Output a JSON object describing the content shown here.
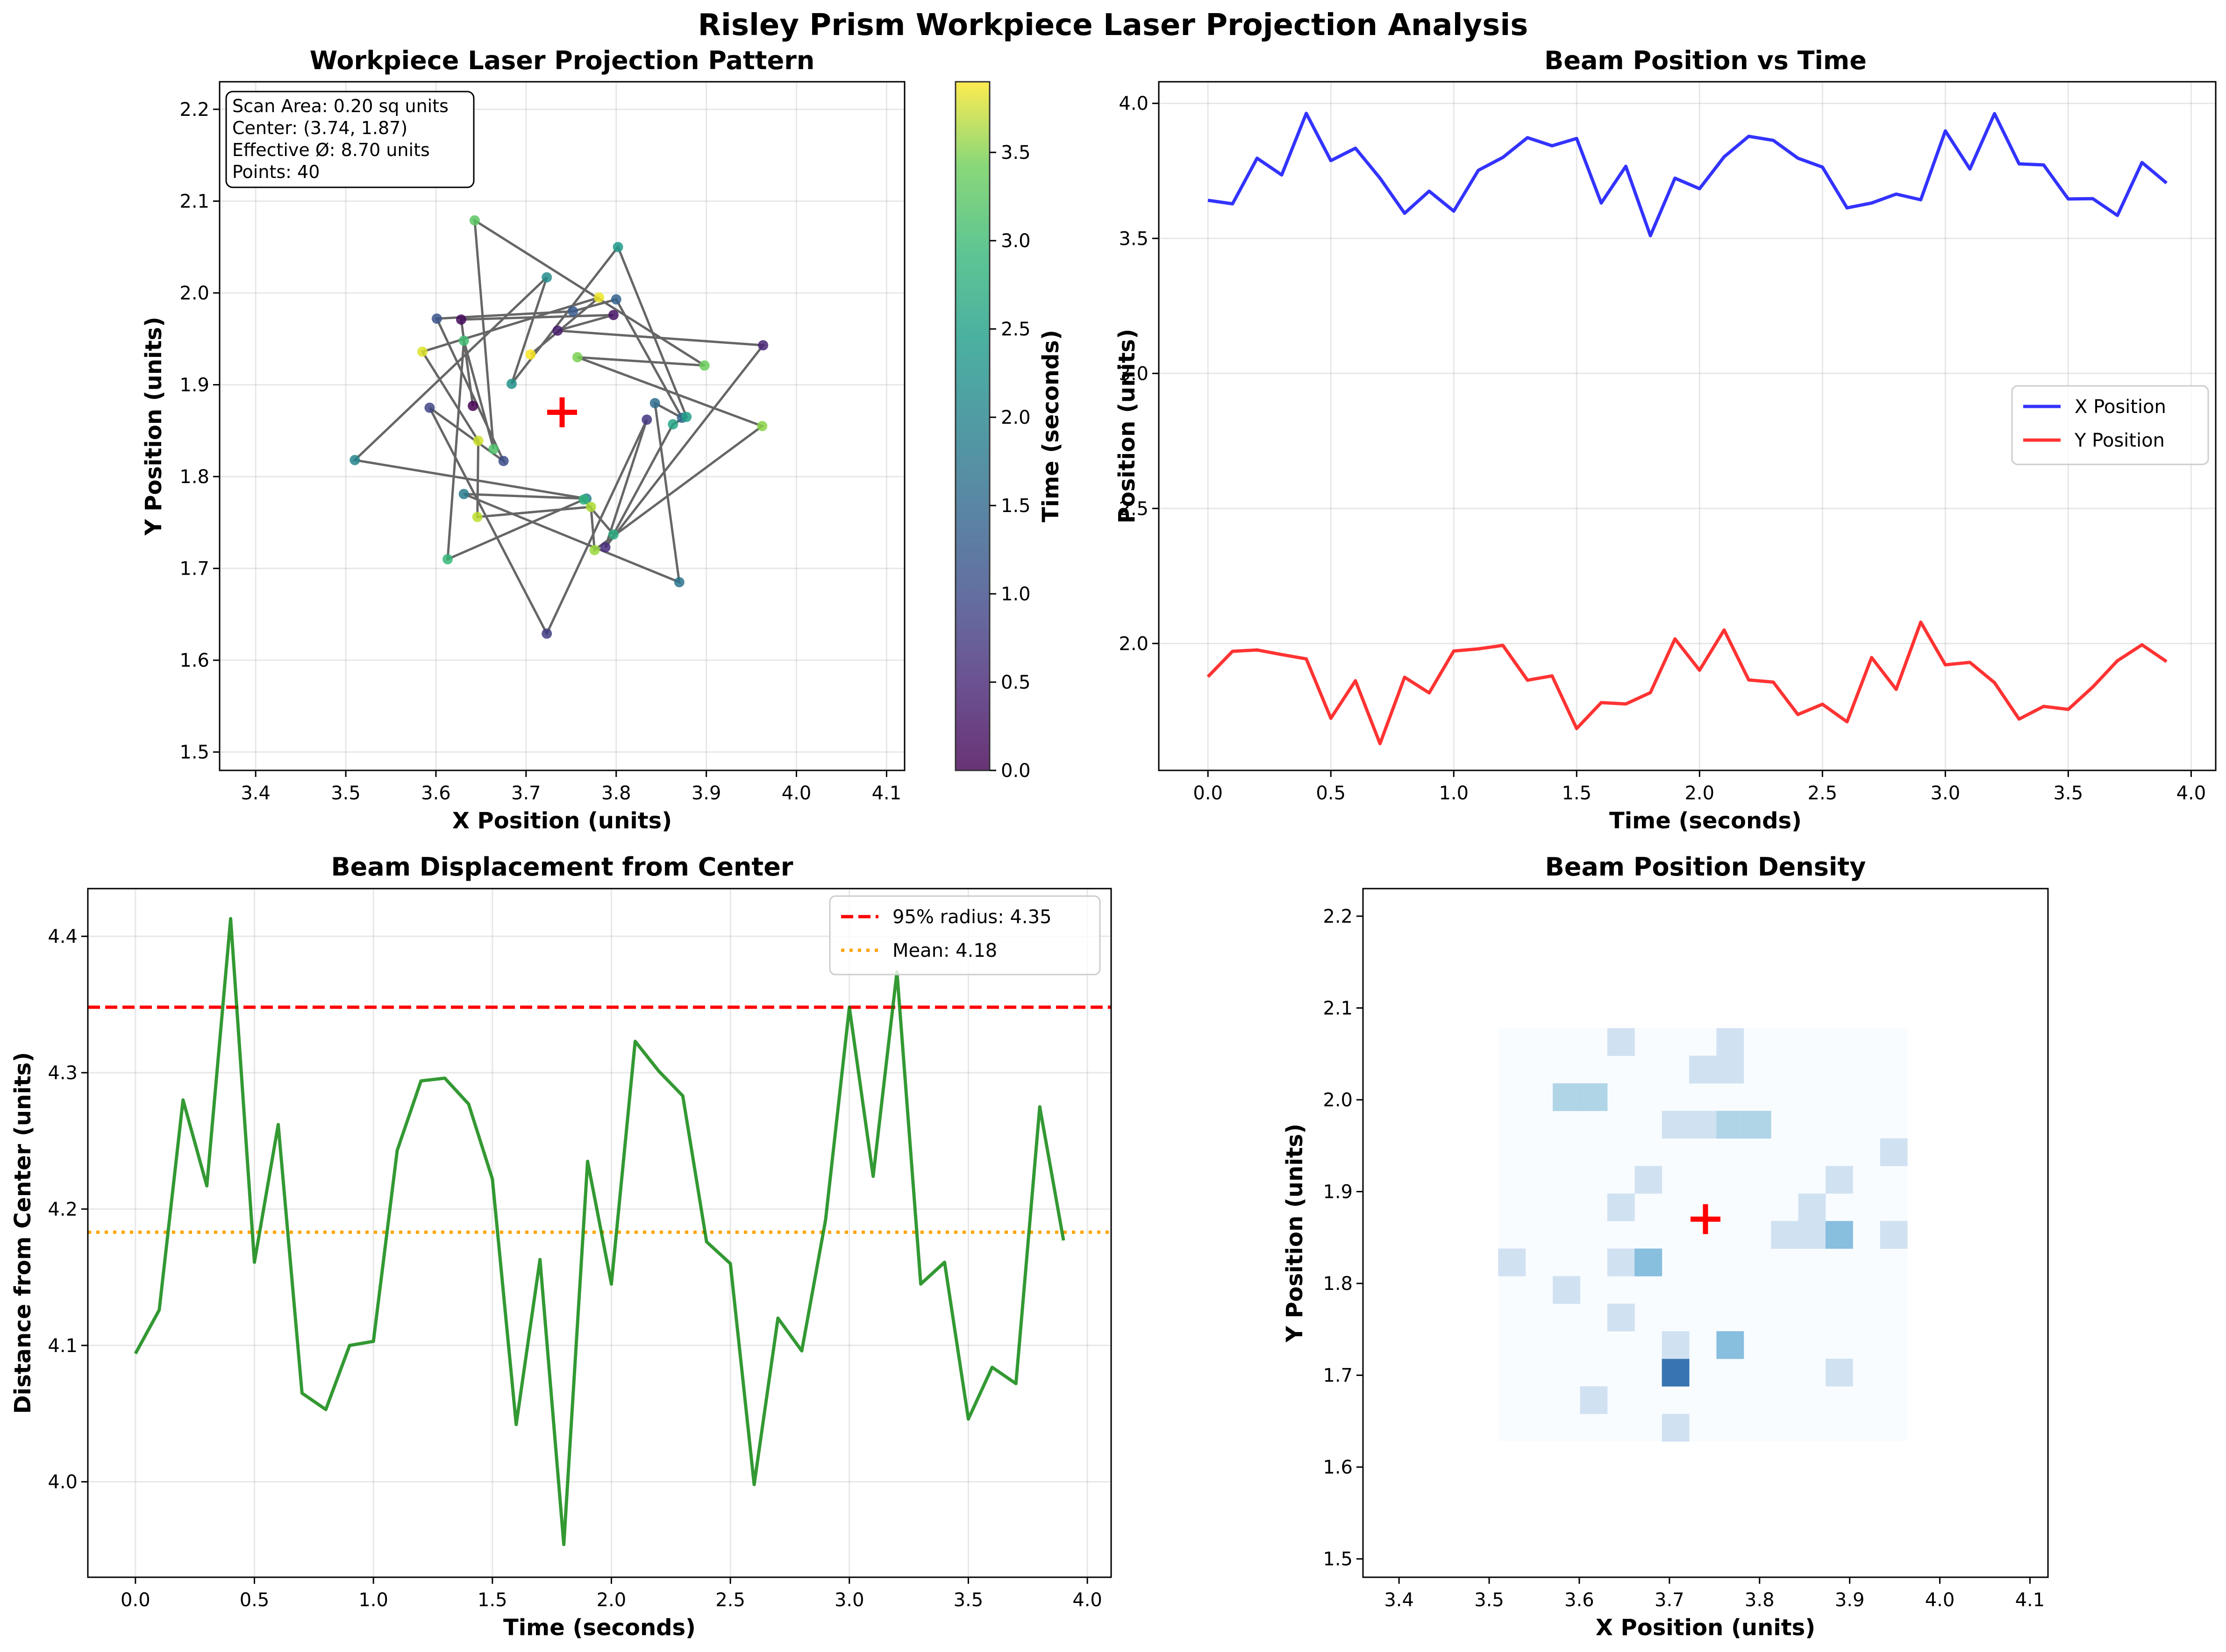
{
  "figure": {
    "title": "Risley Prism Workpiece Laser Projection Analysis"
  },
  "chart_data": [
    {
      "id": "pattern",
      "type": "scatter",
      "title": "Workpiece Laser Projection Pattern",
      "xlabel": "X Position (units)",
      "ylabel": "Y Position (units)",
      "xlim": [
        3.36,
        4.12
      ],
      "ylim": [
        1.48,
        2.23
      ],
      "xticks": [
        "3.4",
        "3.5",
        "3.6",
        "3.7",
        "3.8",
        "3.9",
        "4.0",
        "4.1"
      ],
      "yticks": [
        "1.5",
        "1.6",
        "1.7",
        "1.8",
        "1.9",
        "2.0",
        "2.1",
        "2.2"
      ],
      "grid": true,
      "colorbar": {
        "label": "Time (seconds)",
        "range": [
          0,
          3.9
        ],
        "ticks": [
          "0.0",
          "0.5",
          "1.0",
          "1.5",
          "2.0",
          "2.5",
          "3.0",
          "3.5"
        ],
        "colormap": "viridis"
      },
      "center_marker": {
        "x": 3.74,
        "y": 1.87,
        "color": "#ff0000"
      },
      "info_box": [
        "Scan Area: 0.20 sq units",
        "Center: (3.74, 1.87)",
        "Effective Ø: 8.70 units",
        "Points: 40"
      ],
      "line_color": "#666666"
    },
    {
      "id": "position_time",
      "type": "line",
      "title": "Beam Position vs Time",
      "xlabel": "Time (seconds)",
      "ylabel": "Position (units)",
      "xlim": [
        -0.2,
        4.1
      ],
      "ylim": [
        1.53,
        4.08
      ],
      "xticks": [
        "0.0",
        "0.5",
        "1.0",
        "1.5",
        "2.0",
        "2.5",
        "3.0",
        "3.5",
        "4.0"
      ],
      "yticks": [
        "2.0",
        "2.5",
        "3.0",
        "3.5",
        "4.0"
      ],
      "grid": true,
      "legend_position": "center-right",
      "series": [
        {
          "name": "X Position",
          "color": "#0000ff"
        },
        {
          "name": "Y Position",
          "color": "#ff0000"
        }
      ]
    },
    {
      "id": "displacement",
      "type": "line",
      "title": "Beam Displacement from Center",
      "xlabel": "Time (seconds)",
      "ylabel": "Distance from Center (units)",
      "xlim": [
        -0.2,
        4.1
      ],
      "ylim": [
        3.93,
        4.435
      ],
      "xticks": [
        "0.0",
        "0.5",
        "1.0",
        "1.5",
        "2.0",
        "2.5",
        "3.0",
        "3.5",
        "4.0"
      ],
      "yticks": [
        "4.0",
        "4.1",
        "4.2",
        "4.3",
        "4.4"
      ],
      "grid": true,
      "legend_position": "top-right",
      "line_color": "#008000",
      "values": [
        4.094,
        4.126,
        4.28,
        4.217,
        4.413,
        4.161,
        4.262,
        4.065,
        4.053,
        4.1,
        4.103,
        4.243,
        4.294,
        4.296,
        4.277,
        4.222,
        4.042,
        4.163,
        3.954,
        4.235,
        4.145,
        4.323,
        4.301,
        4.283,
        4.176,
        4.16,
        3.998,
        4.12,
        4.096,
        4.192,
        4.348,
        4.224,
        4.374,
        4.145,
        4.161,
        4.046,
        4.084,
        4.072,
        4.275,
        4.177
      ],
      "reference_lines": [
        {
          "label": "95% radius: 4.35",
          "value": 4.348,
          "color": "#ff0000",
          "style": "dashed"
        },
        {
          "label": "Mean: 4.18",
          "value": 4.183,
          "color": "#ffa500",
          "style": "dotted"
        }
      ]
    },
    {
      "id": "density",
      "type": "heatmap",
      "title": "Beam Position Density",
      "xlabel": "X Position (units)",
      "ylabel": "Y Position (units)",
      "xlim": [
        3.36,
        4.12
      ],
      "ylim": [
        1.48,
        2.23
      ],
      "xticks": [
        "3.4",
        "3.5",
        "3.6",
        "3.7",
        "3.8",
        "3.9",
        "4.0",
        "4.1"
      ],
      "yticks": [
        "1.5",
        "1.6",
        "1.7",
        "1.8",
        "1.9",
        "2.0",
        "2.1",
        "2.2"
      ],
      "center_marker": {
        "x": 3.74,
        "y": 1.87,
        "color": "#ff0000"
      },
      "bins": {
        "x_min": 3.51,
        "x_max": 3.964,
        "y_min": 1.628,
        "y_max": 2.078,
        "nx": 15,
        "ny": 15
      },
      "cells": [
        {
          "i": 0,
          "j": 6,
          "count": 1
        },
        {
          "i": 2,
          "j": 5,
          "count": 1
        },
        {
          "i": 2,
          "j": 12,
          "count": 2
        },
        {
          "i": 3,
          "j": 1,
          "count": 1
        },
        {
          "i": 3,
          "j": 12,
          "count": 2
        },
        {
          "i": 4,
          "j": 4,
          "count": 1
        },
        {
          "i": 4,
          "j": 6,
          "count": 1
        },
        {
          "i": 4,
          "j": 8,
          "count": 1
        },
        {
          "i": 4,
          "j": 14,
          "count": 1
        },
        {
          "i": 5,
          "j": 6,
          "count": 3
        },
        {
          "i": 5,
          "j": 9,
          "count": 1
        },
        {
          "i": 6,
          "j": 11,
          "count": 1
        },
        {
          "i": 7,
          "j": 11,
          "count": 1
        },
        {
          "i": 6,
          "j": 2,
          "count": 5
        },
        {
          "i": 6,
          "j": 0,
          "count": 1
        },
        {
          "i": 6,
          "j": 3,
          "count": 1
        },
        {
          "i": 7,
          "j": 13,
          "count": 1
        },
        {
          "i": 8,
          "j": 11,
          "count": 2
        },
        {
          "i": 8,
          "j": 13,
          "count": 1
        },
        {
          "i": 8,
          "j": 14,
          "count": 1
        },
        {
          "i": 9,
          "j": 11,
          "count": 2
        },
        {
          "i": 8,
          "j": 3,
          "count": 3
        },
        {
          "i": 10,
          "j": 7,
          "count": 1
        },
        {
          "i": 11,
          "j": 7,
          "count": 1
        },
        {
          "i": 11,
          "j": 8,
          "count": 1
        },
        {
          "i": 12,
          "j": 2,
          "count": 1
        },
        {
          "i": 12,
          "j": 7,
          "count": 3
        },
        {
          "i": 12,
          "j": 9,
          "count": 1
        },
        {
          "i": 14,
          "j": 7,
          "count": 1
        },
        {
          "i": 14,
          "j": 10,
          "count": 1
        }
      ]
    }
  ],
  "beam": {
    "t": [
      0.0,
      0.1,
      0.2,
      0.3,
      0.4,
      0.5,
      0.6,
      0.7,
      0.8,
      0.9,
      1.0,
      1.1,
      1.2,
      1.3,
      1.4,
      1.5,
      1.6,
      1.7,
      1.8,
      1.9,
      2.0,
      2.1,
      2.2,
      2.3,
      2.4,
      2.5,
      2.6,
      2.7,
      2.8,
      2.9,
      3.0,
      3.1,
      3.2,
      3.3,
      3.4,
      3.5,
      3.6,
      3.7,
      3.8,
      3.9
    ],
    "x": [
      3.641,
      3.628,
      3.797,
      3.735,
      3.963,
      3.788,
      3.834,
      3.723,
      3.593,
      3.675,
      3.601,
      3.752,
      3.8,
      3.873,
      3.843,
      3.87,
      3.631,
      3.767,
      3.51,
      3.723,
      3.684,
      3.802,
      3.878,
      3.863,
      3.797,
      3.764,
      3.613,
      3.631,
      3.664,
      3.643,
      3.898,
      3.757,
      3.962,
      3.776,
      3.772,
      3.646,
      3.647,
      3.585,
      3.781,
      3.705
    ],
    "y": [
      1.877,
      1.971,
      1.976,
      1.959,
      1.943,
      1.723,
      1.862,
      1.629,
      1.875,
      1.817,
      1.972,
      1.98,
      1.993,
      1.864,
      1.88,
      1.685,
      1.781,
      1.776,
      1.818,
      2.017,
      1.901,
      2.05,
      1.865,
      1.857,
      1.737,
      1.775,
      1.71,
      1.948,
      1.83,
      2.079,
      1.921,
      1.93,
      1.855,
      1.72,
      1.767,
      1.756,
      1.839,
      1.936,
      1.995,
      1.933
    ]
  }
}
